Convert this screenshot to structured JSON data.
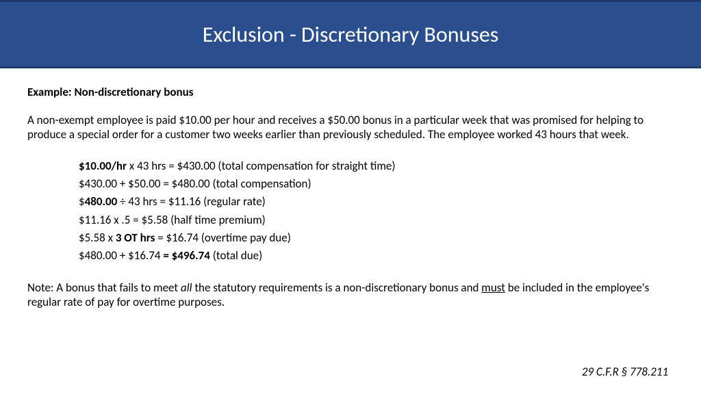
{
  "header": {
    "title": "Exclusion - Discretionary Bonuses",
    "bg_color": "#2a4e8e",
    "border_color": "#1e3a6b",
    "title_color": "#ffffff",
    "title_fontsize": 32
  },
  "body": {
    "example_label": "Example:  Non-discretionary bonus",
    "intro": "A non-exempt employee is paid $10.00 per hour and receives a $50.00 bonus in a particular week that was promised for helping to produce a special order for a customer two weeks earlier than previously scheduled.  The employee worked 43 hours that week.",
    "calc": {
      "l1_bold": "$10.00/hr",
      "l1_rest": " x 43 hrs = $430.00 (total compensation for straight time)",
      "l2": "$430.00 + $50.00 = $480.00 (total compensation)",
      "l3_pre": "$",
      "l3_bold": "480.00",
      "l3_rest": " ÷ 43 hrs = $11.16 (regular rate)",
      "l4": "$11.16 x .5 = $5.58 (half time premium)",
      "l5_pre": "$5.58 x ",
      "l5_bold": "3 OT hrs",
      "l5_rest": " = $16.74 (overtime pay due)",
      "l6_pre": "$480.00 + $16.74 ",
      "l6_bold": "= $496.74",
      "l6_rest": " (total due)"
    },
    "note_pre": "Note: A bonus that fails to meet ",
    "note_ital": "all",
    "note_mid": " the statutory requirements is a non-discretionary bonus and ",
    "note_ul": "must",
    "note_post": " be included in the employee's regular rate of pay for overtime purposes.",
    "text_color": "#000000",
    "fontsize": 17
  },
  "citation": {
    "text": "29 C.F.R § 778.211"
  }
}
